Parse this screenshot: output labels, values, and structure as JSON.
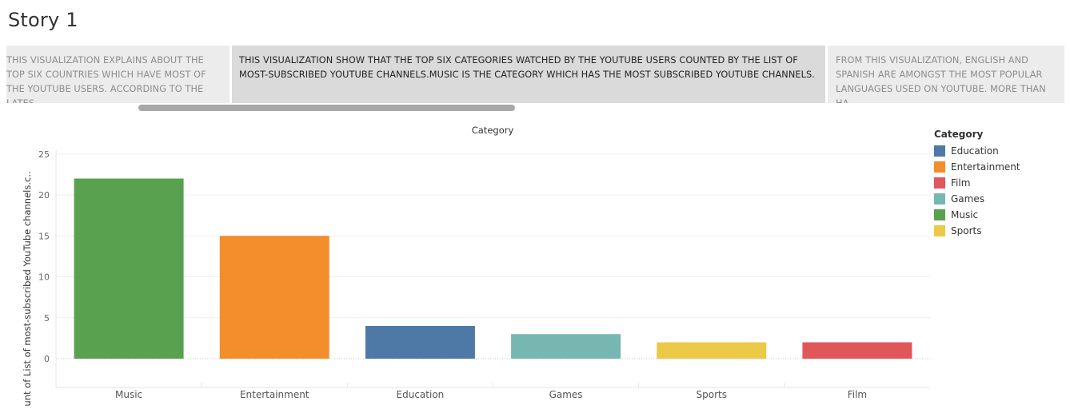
{
  "page": {
    "title": "Story 1"
  },
  "story_points": [
    {
      "text": "THIS VISUALIZATION EXPLAINS ABOUT THE TOP SIX COUNTRIES  WHICH HAVE MOST OF THE YOUTUBE USERS.  ACCORDING TO THE  LATES.."
    },
    {
      "text": "THIS VISUALIZATION SHOW THAT THE TOP SIX CATEGORIES WATCHED BY THE YOUTUBE USERS COUNTED BY THE LIST OF MOST-SUBSCRIBED YOUTUBE CHANNELS.MUSIC IS THE CATEGORY WHICH HAS THE MOST SUBSCRIBED YOUTUBE CHANNELS."
    },
    {
      "text": "FROM THIS VISUALIZATION, ENGLISH AND SPANISH ARE AMONGST THE MOST POPULAR LANGUAGES USED ON YOUTUBE. MORE THAN HA.."
    }
  ],
  "chart_data": {
    "type": "bar",
    "title": "Category",
    "xlabel": "",
    "ylabel": "Count of List of most-subscribed YouTube channels.c..",
    "categories": [
      "Music",
      "Entertainment",
      "Education",
      "Games",
      "Sports",
      "Film"
    ],
    "values": [
      22,
      15,
      4,
      3,
      2,
      2
    ],
    "colors": [
      "#59a14f",
      "#f28e2b",
      "#4e79a7",
      "#76b7b2",
      "#edc948",
      "#e15759"
    ],
    "ylim": [
      0,
      26
    ],
    "yticks": [
      0,
      5,
      10,
      15,
      20,
      25
    ],
    "ytick_labels": [
      "0",
      "5",
      "10",
      "15",
      "20",
      "25"
    ],
    "grid": true,
    "legend_position": "right"
  },
  "legend": {
    "title": "Category",
    "items": [
      {
        "label": "Education",
        "color": "#4e79a7"
      },
      {
        "label": "Entertainment",
        "color": "#f28e2b"
      },
      {
        "label": "Film",
        "color": "#e15759"
      },
      {
        "label": "Games",
        "color": "#76b7b2"
      },
      {
        "label": "Music",
        "color": "#59a14f"
      },
      {
        "label": "Sports",
        "color": "#edc948"
      }
    ]
  }
}
